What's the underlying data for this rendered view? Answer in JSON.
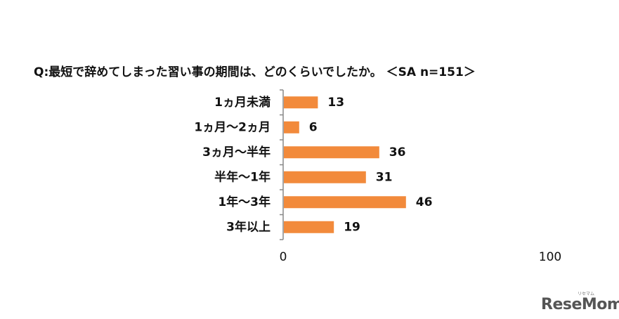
{
  "chart_data": {
    "type": "bar",
    "orientation": "horizontal",
    "title": "Q:最短で辞めてしまった習い事の期間は、どのくらいでしたか。 ＜SA n=151＞",
    "categories": [
      "1ヵ月未満",
      "1ヵ月～2ヵ月",
      "3ヵ月～半年",
      "半年～1年",
      "1年～3年",
      "3年以上"
    ],
    "values": [
      13,
      6,
      36,
      31,
      46,
      19
    ],
    "xlim": [
      0,
      100
    ],
    "x_ticks": [
      "0",
      "100"
    ],
    "grid": false,
    "legend": "none",
    "bar_color": "#f28a3b",
    "axis_color": "#888888"
  },
  "logo": {
    "text": "ReseMom",
    "small_text": "リセマム"
  }
}
